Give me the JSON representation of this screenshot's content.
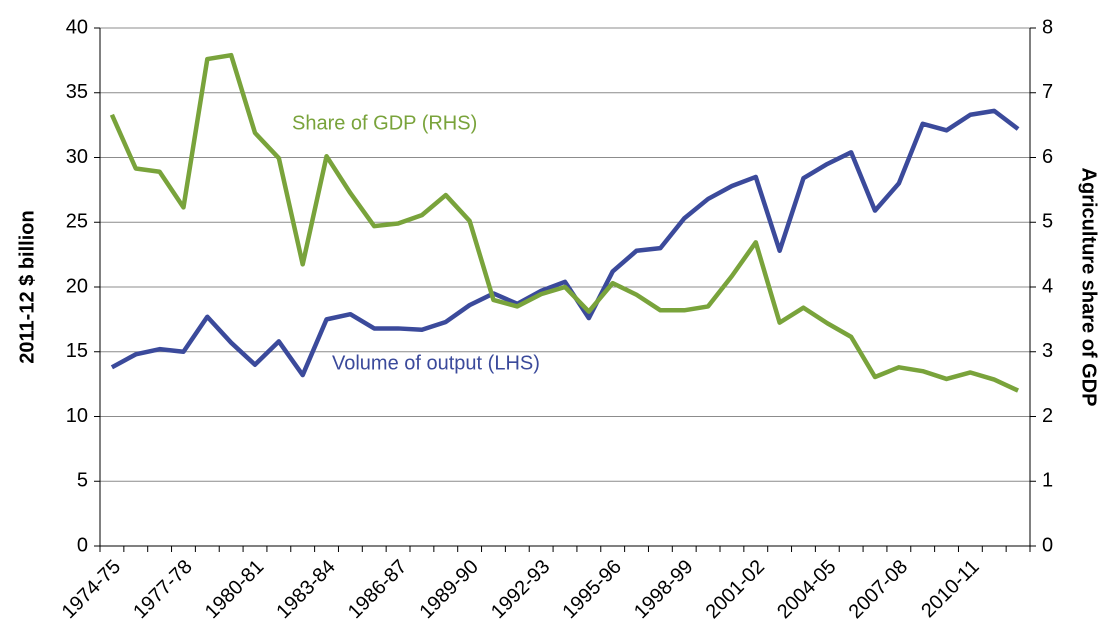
{
  "chart_data": {
    "type": "line",
    "categories": [
      "1974-75",
      null,
      null,
      "1977-78",
      null,
      null,
      "1980-81",
      null,
      null,
      "1983-84",
      null,
      null,
      "1986-87",
      null,
      null,
      "1989-90",
      null,
      null,
      "1992-93",
      null,
      null,
      "1995-96",
      null,
      null,
      "1998-99",
      null,
      null,
      "2001-02",
      null,
      null,
      "2004-05",
      null,
      null,
      "2007-08",
      null,
      null,
      "2010-11",
      null,
      null
    ],
    "series": [
      {
        "name": "Volume of output (LHS)",
        "color": "#3b4a9b",
        "axis": "y",
        "values": [
          13.8,
          14.8,
          15.2,
          15.0,
          17.7,
          15.7,
          14.0,
          15.8,
          13.2,
          17.5,
          17.9,
          16.8,
          16.8,
          16.7,
          17.3,
          18.6,
          19.5,
          18.7,
          19.7,
          20.4,
          17.6,
          21.2,
          22.8,
          23.0,
          25.3,
          26.8,
          27.8,
          28.5,
          22.8,
          28.4,
          29.5,
          30.4,
          25.9,
          28.0,
          32.6,
          32.1,
          33.3,
          33.6,
          32.2
        ]
      },
      {
        "name": "Share of GDP (RHS)",
        "color": "#79a33b",
        "axis": "y2",
        "values": [
          6.66,
          5.83,
          5.78,
          5.23,
          7.52,
          7.58,
          6.38,
          5.99,
          4.35,
          6.02,
          5.45,
          4.94,
          4.98,
          5.11,
          5.42,
          5.02,
          3.8,
          3.7,
          3.89,
          4.0,
          3.62,
          4.06,
          3.88,
          3.64,
          3.64,
          3.7,
          4.17,
          4.69,
          3.45,
          3.68,
          3.44,
          3.23,
          2.61,
          2.76,
          2.7,
          2.58,
          2.68,
          2.57,
          2.4
        ]
      }
    ],
    "y_label": "2011-12 $ billion",
    "y2_label": "Agriculture share of GDP",
    "ylim": [
      0,
      40
    ],
    "yticks": [
      0,
      5,
      10,
      15,
      20,
      25,
      30,
      35,
      40
    ],
    "y2lim": [
      0,
      8
    ],
    "y2ticks": [
      0,
      1,
      2,
      3,
      4,
      5,
      6,
      7,
      8
    ],
    "grid": true
  }
}
